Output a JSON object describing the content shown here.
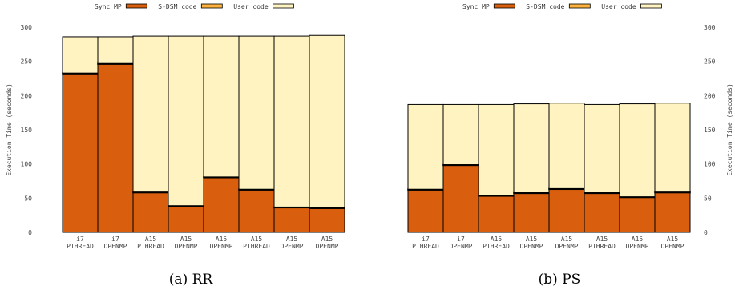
{
  "figure": {
    "captions": [
      "(a) RR",
      "(b) PS"
    ]
  },
  "colors": {
    "sync_mp": "#d95f0e",
    "sdsm": "#fdb23e",
    "user": "#fff3c2",
    "edge": "#000000"
  },
  "chart_data": [
    {
      "type": "bar",
      "stacked": true,
      "caption": "(a) RR",
      "categories": [
        "i7 PTHREAD",
        "i7 OPENMP",
        "A15 PTHREAD",
        "A15 OPENMP",
        "A15 OPENMP",
        "A15 PTHREAD",
        "A15 OPENMP",
        "A15 OPENMP"
      ],
      "category_lines": [
        [
          "i7",
          "PTHREAD"
        ],
        [
          "i7",
          "OPENMP"
        ],
        [
          "A15",
          "PTHREAD"
        ],
        [
          "A15",
          "OPENMP"
        ],
        [
          "A15",
          "OPENMP"
        ],
        [
          "A15",
          "PTHREAD"
        ],
        [
          "A15",
          "OPENMP"
        ],
        [
          "A15",
          "OPENMP"
        ]
      ],
      "series": [
        {
          "name": "Sync MP",
          "values": [
            232,
            246,
            58,
            38,
            80,
            62,
            36,
            35
          ]
        },
        {
          "name": "S-DSM code",
          "values": [
            1,
            1,
            1,
            1,
            1,
            1,
            1,
            1
          ]
        },
        {
          "name": "User code",
          "values": [
            53,
            39,
            228,
            248,
            206,
            224,
            250,
            252
          ]
        }
      ],
      "ylabel": "Execution Time (seconds)",
      "ylim": [
        0,
        300
      ],
      "yticks": [
        0,
        50,
        100,
        150,
        200,
        250,
        300
      ],
      "y_axis_side": "left",
      "legend_position": "top-center",
      "grid": false
    },
    {
      "type": "bar",
      "stacked": true,
      "caption": "(b) PS",
      "categories": [
        "i7 PTHREAD",
        "i7 OPENMP",
        "A15 PTHREAD",
        "A15 OPENMP",
        "A15 OPENMP",
        "A15 PTHREAD",
        "A15 OPENMP",
        "A15 OPENMP"
      ],
      "category_lines": [
        [
          "i7",
          "PTHREAD"
        ],
        [
          "i7",
          "OPENMP"
        ],
        [
          "A15",
          "PTHREAD"
        ],
        [
          "A15",
          "OPENMP"
        ],
        [
          "A15",
          "OPENMP"
        ],
        [
          "A15",
          "PTHREAD"
        ],
        [
          "A15",
          "OPENMP"
        ],
        [
          "A15",
          "OPENMP"
        ]
      ],
      "series": [
        {
          "name": "Sync MP",
          "values": [
            62,
            98,
            53,
            57,
            63,
            57,
            51,
            58
          ]
        },
        {
          "name": "S-DSM code",
          "values": [
            1,
            1,
            1,
            1,
            1,
            1,
            1,
            1
          ]
        },
        {
          "name": "User code",
          "values": [
            124,
            88,
            133,
            130,
            125,
            129,
            136,
            130
          ]
        }
      ],
      "ylabel": "Execution Time (seconds)",
      "ylim": [
        0,
        300
      ],
      "yticks": [
        0,
        50,
        100,
        150,
        200,
        250,
        300
      ],
      "y_axis_side": "right",
      "legend_position": "top-center",
      "grid": false
    }
  ]
}
